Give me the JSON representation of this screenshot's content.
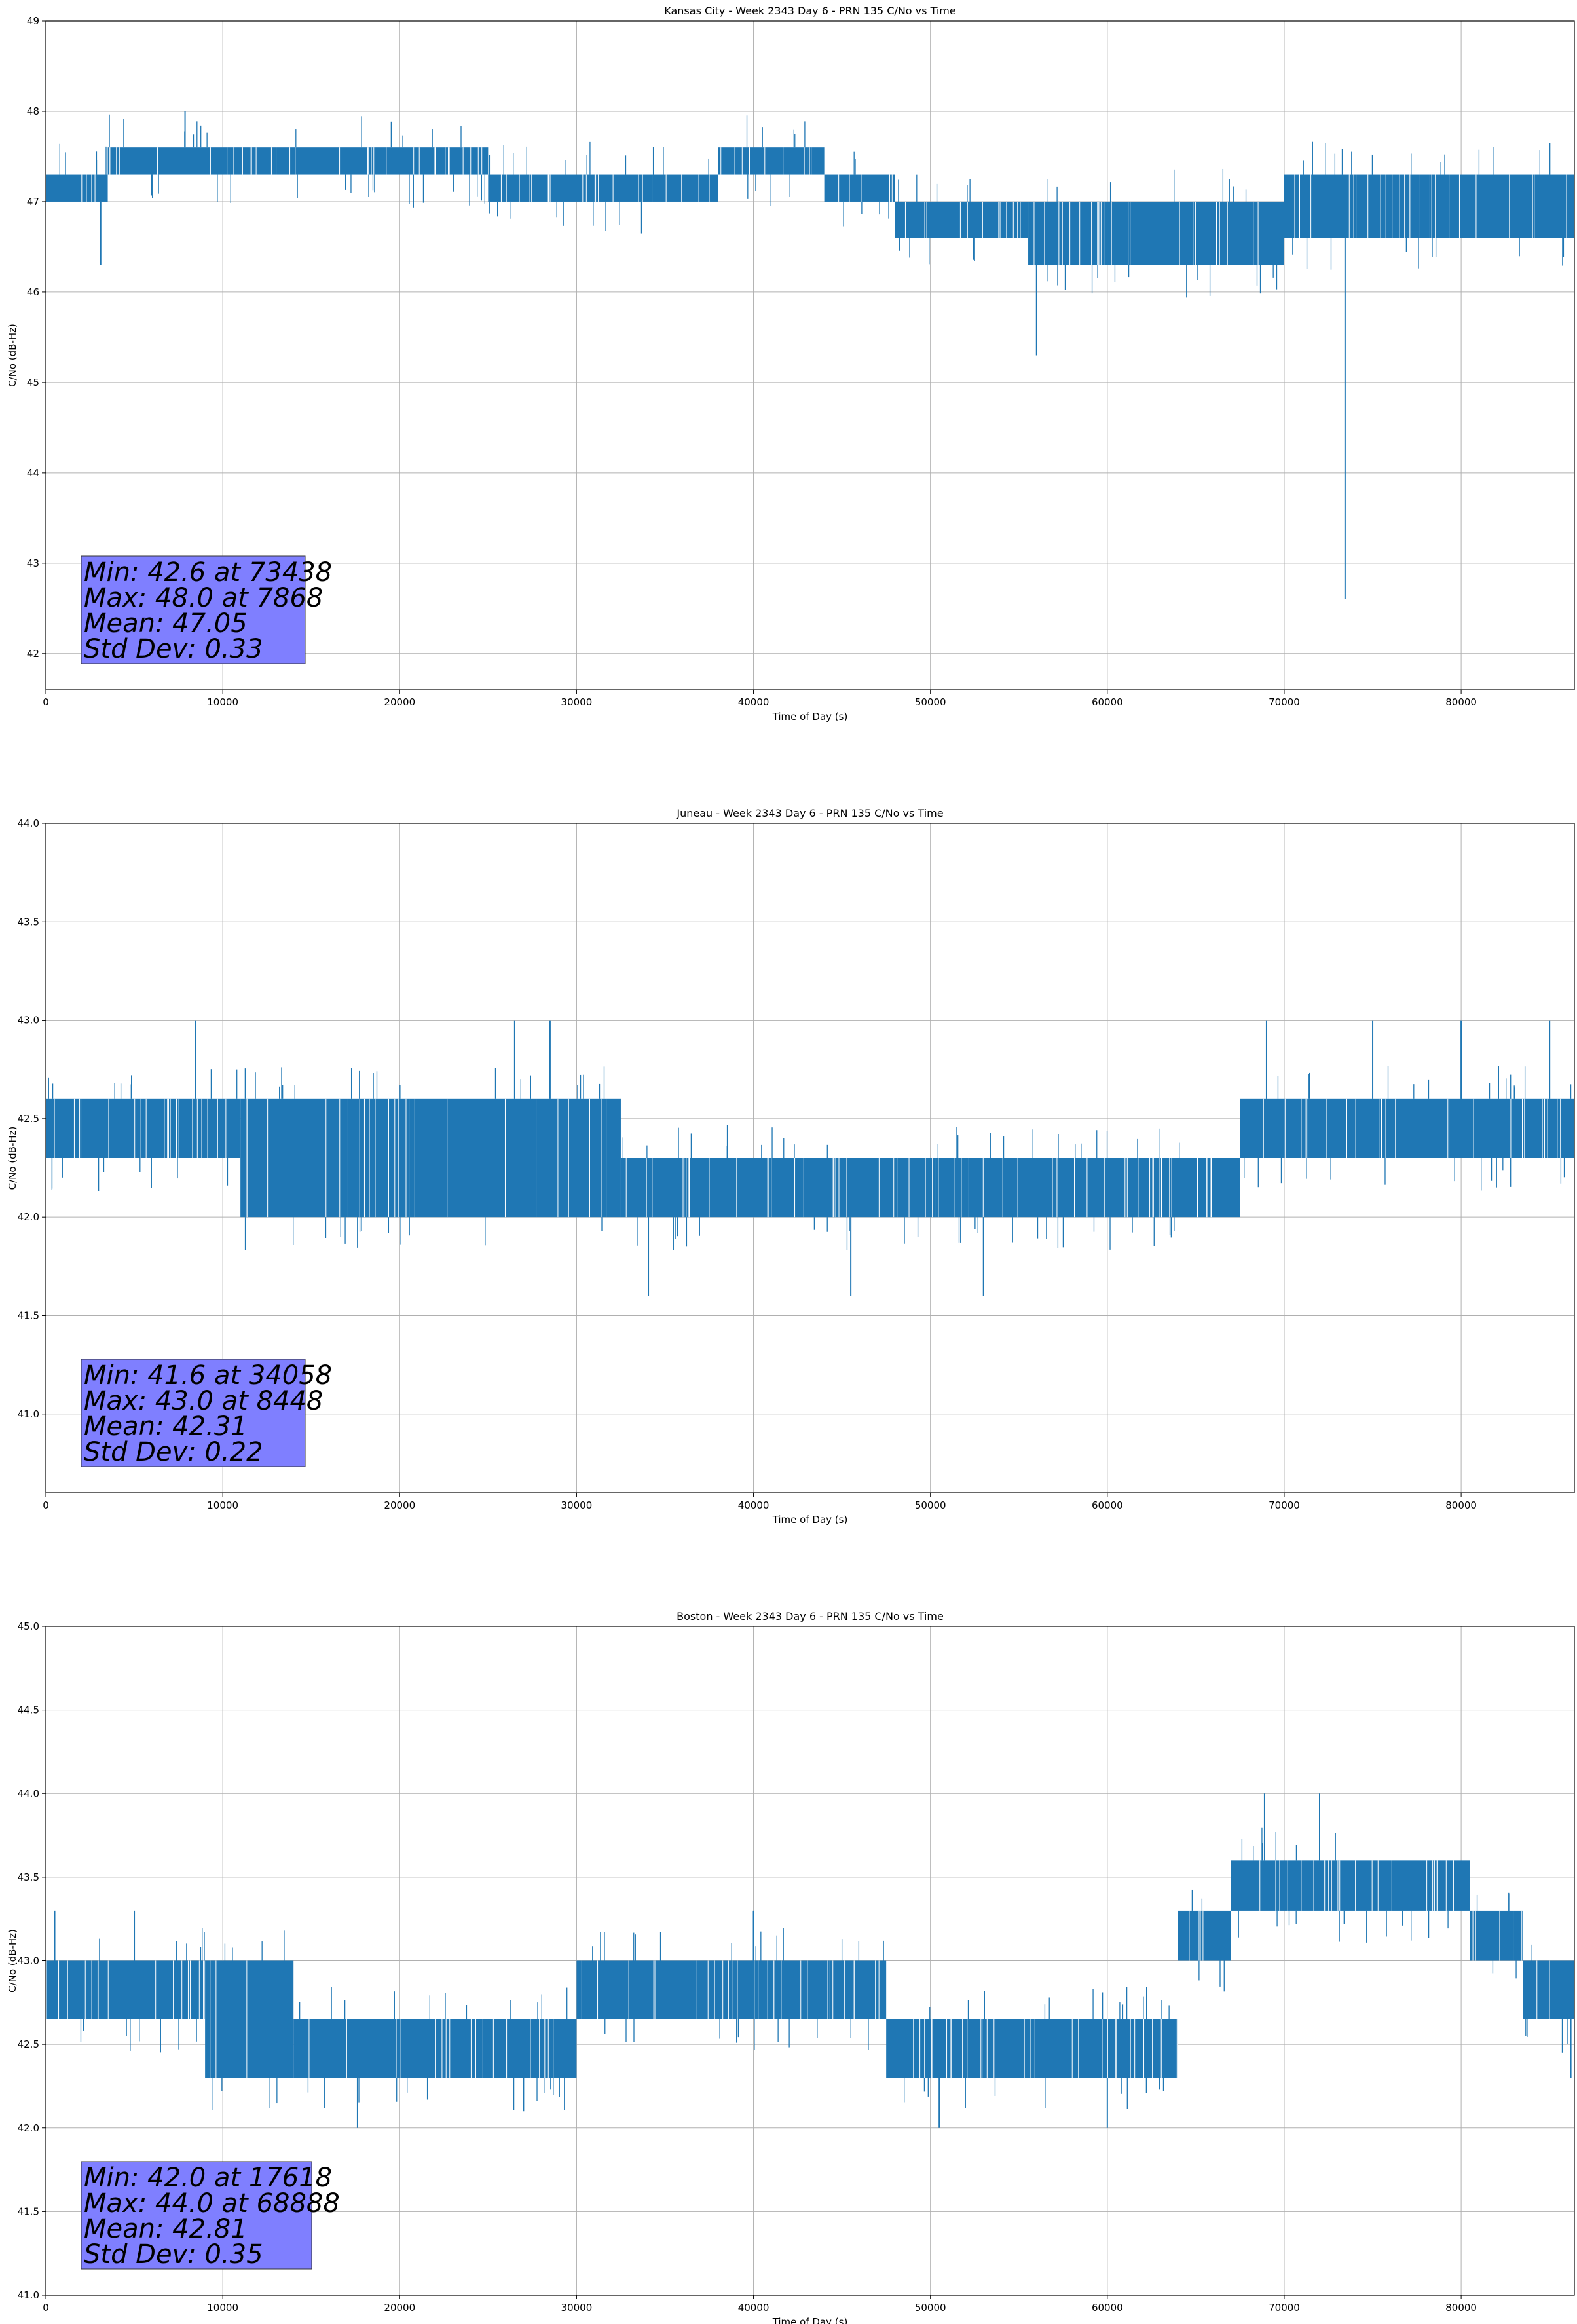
{
  "chart_data": [
    {
      "type": "line",
      "title": "Kansas City - Week 2343 Day 6 - PRN 135 C/No vs Time",
      "xlabel": "Time of Day (s)",
      "ylabel": "C/No (dB-Hz)",
      "xlim": [
        0,
        86400
      ],
      "ylim": [
        41.6,
        49
      ],
      "xticks": [
        0,
        10000,
        20000,
        30000,
        40000,
        50000,
        60000,
        70000,
        80000
      ],
      "xtick_labels": [
        "0",
        "10000",
        "20000",
        "30000",
        "40000",
        "50000",
        "60000",
        "70000",
        "80000"
      ],
      "yticks": [
        42,
        43,
        44,
        45,
        46,
        47,
        48,
        49
      ],
      "ytick_labels": [
        "42",
        "43",
        "44",
        "45",
        "46",
        "47",
        "48",
        "49"
      ],
      "grid": true,
      "series_color": "#1f77b4",
      "series": [
        {
          "name": "C/No",
          "segments": [
            {
              "x": [
                0,
                3500
              ],
              "low": 47.0,
              "high": 47.3
            },
            {
              "x": [
                3500,
                25000
              ],
              "low": 47.3,
              "high": 47.6
            },
            {
              "x": [
                25000,
                38000
              ],
              "low": 47.0,
              "high": 47.3
            },
            {
              "x": [
                38000,
                44000
              ],
              "low": 47.3,
              "high": 47.6
            },
            {
              "x": [
                44000,
                48000
              ],
              "low": 47.0,
              "high": 47.3
            },
            {
              "x": [
                48000,
                55500
              ],
              "low": 46.6,
              "high": 47.0
            },
            {
              "x": [
                55500,
                70000
              ],
              "low": 46.3,
              "high": 47.0
            },
            {
              "x": [
                70000,
                86400
              ],
              "low": 46.6,
              "high": 47.3
            }
          ],
          "spikes": [
            {
              "x": 7868,
              "y": 48.0
            },
            {
              "x": 3100,
              "y": 46.3
            },
            {
              "x": 56000,
              "y": 45.3
            },
            {
              "x": 73438,
              "y": 42.6
            }
          ]
        }
      ],
      "stats": [
        "Min: 42.6 at 73438",
        "Max: 48.0 at 7868",
        "Mean: 47.05",
        "Std Dev: 0.33"
      ],
      "stats_box_color": "#7f7fff"
    },
    {
      "type": "line",
      "title": "Juneau - Week 2343 Day 6 - PRN 135 C/No vs Time",
      "xlabel": "Time of Day (s)",
      "ylabel": "C/No (dB-Hz)",
      "xlim": [
        0,
        86400
      ],
      "ylim": [
        40.6,
        44.0
      ],
      "xticks": [
        0,
        10000,
        20000,
        30000,
        40000,
        50000,
        60000,
        70000,
        80000
      ],
      "xtick_labels": [
        "0",
        "10000",
        "20000",
        "30000",
        "40000",
        "50000",
        "60000",
        "70000",
        "80000"
      ],
      "yticks": [
        41.0,
        41.5,
        42.0,
        42.5,
        43.0,
        43.5,
        44.0
      ],
      "ytick_labels": [
        "41.0",
        "41.5",
        "42.0",
        "42.5",
        "43.0",
        "43.5",
        "44.0"
      ],
      "grid": true,
      "series_color": "#1f77b4",
      "series": [
        {
          "name": "C/No",
          "segments": [
            {
              "x": [
                0,
                11000
              ],
              "low": 42.3,
              "high": 42.6
            },
            {
              "x": [
                11000,
                32500
              ],
              "low": 42.0,
              "high": 42.6
            },
            {
              "x": [
                32500,
                67500
              ],
              "low": 42.0,
              "high": 42.3
            },
            {
              "x": [
                67500,
                70000
              ],
              "low": 42.3,
              "high": 42.6
            },
            {
              "x": [
                70000,
                86400
              ],
              "low": 42.3,
              "high": 42.6
            }
          ],
          "spikes": [
            {
              "x": 8448,
              "y": 43.0
            },
            {
              "x": 26500,
              "y": 43.0
            },
            {
              "x": 28500,
              "y": 43.0
            },
            {
              "x": 34058,
              "y": 41.6
            },
            {
              "x": 45500,
              "y": 41.6
            },
            {
              "x": 53000,
              "y": 41.6
            },
            {
              "x": 69000,
              "y": 43.0
            },
            {
              "x": 75000,
              "y": 43.0
            },
            {
              "x": 80000,
              "y": 43.0
            },
            {
              "x": 85000,
              "y": 43.0
            }
          ]
        }
      ],
      "stats": [
        "Min: 41.6 at 34058",
        "Max: 43.0 at 8448",
        "Mean: 42.31",
        "Std Dev: 0.22"
      ],
      "stats_box_color": "#7f7fff"
    },
    {
      "type": "line",
      "title": "Boston - Week 2343 Day 6 - PRN 135 C/No vs Time",
      "xlabel": "Time of Day (s)",
      "ylabel": "C/No (dB-Hz)",
      "xlim": [
        0,
        86400
      ],
      "ylim": [
        41.0,
        45.0
      ],
      "xticks": [
        0,
        10000,
        20000,
        30000,
        40000,
        50000,
        60000,
        70000,
        80000
      ],
      "xtick_labels": [
        "0",
        "10000",
        "20000",
        "30000",
        "40000",
        "50000",
        "60000",
        "70000",
        "80000"
      ],
      "yticks": [
        41.0,
        41.5,
        42.0,
        42.5,
        43.0,
        43.5,
        44.0,
        44.5,
        45.0
      ],
      "ytick_labels": [
        "41.0",
        "41.5",
        "42.0",
        "42.5",
        "43.0",
        "43.5",
        "44.0",
        "44.5",
        "45.0"
      ],
      "grid": true,
      "series_color": "#1f77b4",
      "series": [
        {
          "name": "C/No",
          "segments": [
            {
              "x": [
                0,
                9000
              ],
              "low": 42.65,
              "high": 43.0
            },
            {
              "x": [
                9000,
                14000
              ],
              "low": 42.3,
              "high": 43.0
            },
            {
              "x": [
                14000,
                30000
              ],
              "low": 42.3,
              "high": 42.65
            },
            {
              "x": [
                30000,
                47500
              ],
              "low": 42.65,
              "high": 43.0
            },
            {
              "x": [
                47500,
                64000
              ],
              "low": 42.3,
              "high": 42.65
            },
            {
              "x": [
                64000,
                67000
              ],
              "low": 43.0,
              "high": 43.3
            },
            {
              "x": [
                67000,
                80500
              ],
              "low": 43.3,
              "high": 43.6
            },
            {
              "x": [
                80500,
                83500
              ],
              "low": 43.0,
              "high": 43.3
            },
            {
              "x": [
                83500,
                86400
              ],
              "low": 42.65,
              "high": 43.0
            }
          ],
          "spikes": [
            {
              "x": 500,
              "y": 43.3
            },
            {
              "x": 5000,
              "y": 43.3
            },
            {
              "x": 17618,
              "y": 42.0
            },
            {
              "x": 27000,
              "y": 42.1
            },
            {
              "x": 40000,
              "y": 43.3
            },
            {
              "x": 50500,
              "y": 42.0
            },
            {
              "x": 60000,
              "y": 42.0
            },
            {
              "x": 68888,
              "y": 44.0
            },
            {
              "x": 72000,
              "y": 44.0
            },
            {
              "x": 86200,
              "y": 42.3
            }
          ]
        }
      ],
      "stats": [
        "Min: 42.0 at 17618",
        "Max: 44.0 at 68888",
        "Mean: 42.81",
        "Std Dev: 0.35"
      ],
      "stats_box_color": "#7f7fff"
    }
  ]
}
